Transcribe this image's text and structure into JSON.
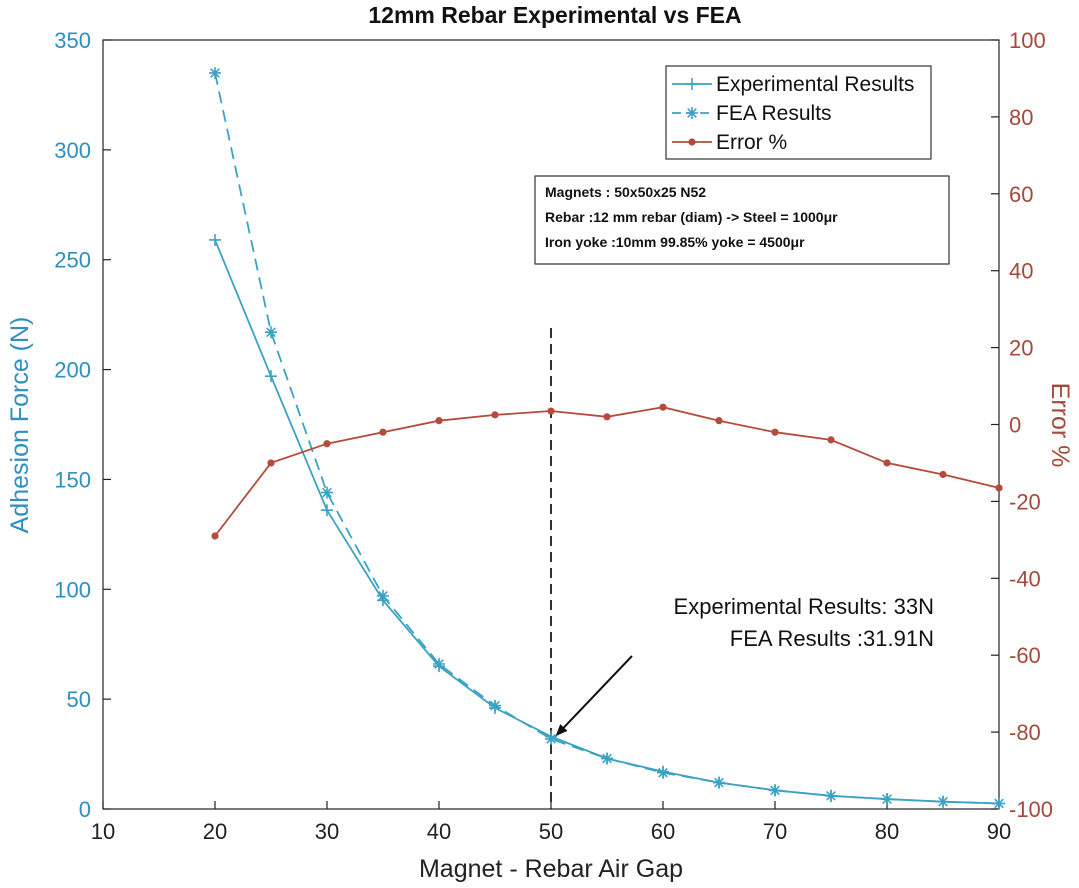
{
  "chart_data": {
    "type": "line",
    "title": "12mm Rebar Experimental vs FEA",
    "xlabel": "Magnet - Rebar Air Gap",
    "ylabel": "Adhesion Force (N)",
    "y2label": "Error %",
    "xlim": [
      10,
      90
    ],
    "ylim": [
      0,
      350
    ],
    "y2lim": [
      -100,
      100
    ],
    "x_ticks": [
      "10",
      "20",
      "30",
      "40",
      "50",
      "60",
      "70",
      "80",
      "90"
    ],
    "y_ticks": [
      "0",
      "50",
      "100",
      "150",
      "200",
      "250",
      "300",
      "350"
    ],
    "y2_ticks": [
      "-100",
      "-80",
      "-60",
      "-40",
      "-20",
      "0",
      "20",
      "40",
      "60",
      "80",
      "100"
    ],
    "x": [
      20,
      25,
      30,
      35,
      40,
      45,
      50,
      55,
      60,
      65,
      70,
      75,
      80,
      85,
      90
    ],
    "series": [
      {
        "name": "Experimental Results",
        "axis": "left",
        "color": "#3aa3c4",
        "marker": "plus",
        "line": "solid",
        "values": [
          259,
          197,
          136,
          95,
          65,
          46,
          33,
          23,
          17,
          12,
          8.5,
          6,
          4.5,
          3.3,
          2.5
        ]
      },
      {
        "name": "FEA Results",
        "axis": "left",
        "color": "#3aa3c4",
        "marker": "asterisk",
        "line": "dashed",
        "values": [
          335,
          217,
          144,
          97,
          66,
          47,
          31.91,
          23,
          16.5,
          12,
          8.5,
          6,
          4.5,
          3.3,
          2.5
        ]
      },
      {
        "name": "Error %",
        "axis": "right",
        "color": "#b54b3c",
        "marker": "dot",
        "line": "solid",
        "values": [
          -29,
          -10,
          -5,
          -2,
          1,
          2.5,
          3.5,
          2,
          4.5,
          1,
          -2,
          -4,
          -10,
          -13,
          -16.5
        ]
      }
    ],
    "legend_position": "top-right",
    "vline_x": 50,
    "note_lines": [
      "Magnets : 50x50x25 N52",
      "Rebar :12 mm rebar (diam) -> Steel = 1000μr",
      "Iron yoke :10mm 99.85% yoke = 4500μr"
    ],
    "annotation_lines": [
      "Experimental Results: 33N",
      "FEA Results :31.91N"
    ],
    "arrow_to": {
      "x": 50,
      "y": 32
    },
    "grid": false
  }
}
